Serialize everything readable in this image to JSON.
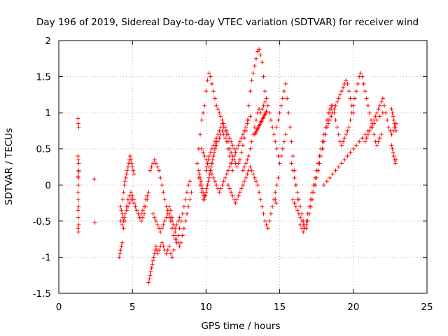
{
  "chart_data": {
    "type": "scatter",
    "title": "Day 196 of 2019, Sidereal Day-to-day VTEC variation (SDTVAR) for receiver wind",
    "xlabel": "GPS time / hours",
    "ylabel": "SDTVAR / TECUs",
    "xlim": [
      0,
      25
    ],
    "ylim": [
      -1.5,
      2
    ],
    "xticks": [
      0,
      5,
      10,
      15,
      20,
      25
    ],
    "yticks": [
      -1.5,
      -1,
      -0.5,
      0,
      0.5,
      1,
      1.5,
      2
    ],
    "xtick_labels": [
      "0",
      "5",
      "10",
      "15",
      "20",
      "25"
    ],
    "ytick_labels": [
      "-1.5",
      "-1",
      "-0.5",
      "0",
      "0.5",
      "1",
      "1.5",
      "2"
    ],
    "grid": true,
    "marker": "+",
    "color": "#ff0000",
    "series": [
      {
        "name": "SDTVAR",
        "x": [
          1.3,
          1.32,
          1.35,
          1.3,
          1.32,
          1.35,
          1.3,
          1.33,
          1.35,
          1.3,
          1.32,
          1.35,
          1.3,
          1.32,
          1.35,
          1.3,
          1.33,
          1.35,
          1.33,
          2.4,
          2.45,
          4.1,
          4.15,
          4.2,
          4.25,
          4.3,
          4.35,
          4.4,
          4.45,
          4.5,
          4.55,
          4.6,
          4.65,
          4.7,
          4.75,
          4.8,
          4.85,
          4.9,
          4.95,
          5.0,
          5.05,
          5.1,
          4.2,
          4.25,
          4.3,
          4.35,
          4.4,
          4.45,
          4.5,
          4.6,
          4.7,
          4.8,
          4.9,
          5.0,
          5.1,
          5.2,
          5.3,
          5.4,
          5.5,
          5.6,
          5.7,
          5.8,
          5.9,
          6.0,
          4.2,
          4.3,
          4.4,
          4.5,
          4.6,
          4.7,
          4.8,
          4.9,
          5.0,
          5.1,
          5.2,
          5.3,
          5.4,
          5.5,
          5.6,
          5.7,
          5.8,
          5.9,
          6.0,
          6.1,
          6.1,
          6.15,
          6.2,
          6.25,
          6.3,
          6.35,
          6.4,
          6.45,
          6.5,
          6.55,
          6.6,
          6.65,
          6.7,
          6.8,
          6.9,
          7.0,
          7.1,
          7.2,
          7.3,
          7.4,
          7.5,
          7.6,
          7.7,
          7.8,
          6.2,
          6.3,
          6.4,
          6.5,
          6.6,
          6.7,
          6.8,
          6.9,
          7.0,
          7.1,
          7.2,
          7.3,
          7.4,
          7.5,
          7.6,
          7.7,
          7.8,
          7.9,
          8.0,
          8.1,
          8.2,
          6.4,
          6.5,
          6.6,
          6.7,
          6.8,
          6.9,
          7.0,
          7.1,
          7.2,
          7.3,
          7.4,
          7.5,
          7.6,
          7.7,
          7.8,
          7.9,
          8.0,
          8.1,
          8.2,
          8.3,
          8.4,
          8.5,
          8.6,
          8.7,
          8.8,
          8.9,
          7.5,
          7.6,
          7.7,
          7.8,
          7.9,
          8.0,
          8.1,
          8.2,
          8.3,
          8.4,
          8.5,
          8.6,
          8.7,
          8.8,
          8.9,
          9.0,
          9.4,
          9.5,
          9.6,
          9.7,
          9.8,
          9.9,
          10.0,
          10.1,
          10.2,
          10.3,
          10.4,
          10.5,
          10.6,
          10.7,
          10.8,
          10.9,
          11.0,
          11.1,
          11.2,
          11.3,
          11.4,
          11.5,
          11.6,
          11.7,
          11.8,
          11.9,
          12.0,
          9.5,
          9.6,
          9.7,
          9.8,
          9.9,
          10.0,
          10.1,
          10.2,
          10.3,
          10.4,
          10.5,
          10.6,
          10.7,
          10.8,
          10.9,
          11.0,
          11.1,
          11.2,
          11.3,
          11.4,
          11.5,
          11.6,
          11.7,
          11.8,
          9.7,
          9.8,
          9.9,
          10.0,
          10.1,
          10.2,
          10.3,
          10.4,
          10.5,
          10.6,
          10.7,
          10.8,
          10.9,
          11.0,
          11.1,
          11.2,
          11.3,
          11.4,
          11.5,
          11.6,
          11.7,
          11.8,
          11.9,
          12.0,
          12.1,
          12.2,
          12.3,
          12.4,
          12.5,
          12.6,
          12.7,
          12.8,
          12.9,
          13.0,
          10.0,
          10.05,
          10.1,
          10.15,
          10.2,
          10.3,
          10.4,
          10.5,
          10.6,
          10.7,
          10.8,
          10.9,
          11.0,
          11.1,
          11.2,
          11.3,
          11.4,
          11.5,
          11.6,
          11.7,
          11.8,
          11.9,
          12.0,
          12.1,
          12.2,
          12.3,
          12.4,
          12.5,
          12.6,
          12.7,
          12.8,
          12.9,
          13.0,
          13.1,
          13.2,
          13.3,
          13.4,
          13.5,
          13.6,
          13.7,
          13.8,
          13.9,
          14.0,
          12.5,
          12.6,
          12.7,
          12.8,
          12.9,
          13.0,
          13.1,
          13.2,
          13.3,
          13.4,
          13.5,
          13.6,
          13.7,
          13.8,
          13.9,
          14.0,
          14.1,
          14.2,
          14.3,
          14.4,
          14.5,
          14.6,
          14.7,
          14.8,
          14.9,
          15.0,
          15.1,
          15.2,
          15.3,
          15.4,
          11.5,
          11.6,
          11.7,
          11.8,
          11.9,
          12.0,
          12.1,
          12.2,
          12.3,
          12.4,
          12.5,
          12.6,
          12.7,
          12.8,
          12.9,
          13.0,
          13.1,
          13.2,
          13.3,
          13.4,
          13.5,
          13.6,
          13.7,
          13.8,
          13.9,
          14.0,
          14.1,
          14.2,
          14.3,
          14.4,
          14.5,
          14.6,
          14.7,
          14.8,
          14.9,
          14.8,
          14.9,
          15.0,
          15.1,
          15.2,
          15.3,
          15.4,
          15.5,
          15.6,
          15.7,
          15.8,
          15.9,
          16.0,
          16.1,
          16.2,
          16.3,
          16.4,
          16.5,
          16.6,
          16.7,
          16.8,
          16.9,
          17.0,
          17.1,
          17.2,
          17.3,
          17.4,
          17.5,
          17.6,
          17.7,
          17.8,
          17.9,
          18.0,
          18.1,
          18.2,
          18.3,
          18.4,
          18.5,
          15.8,
          15.9,
          16.0,
          16.1,
          16.2,
          16.3,
          16.4,
          16.5,
          16.6,
          16.7,
          16.8,
          16.9,
          17.0,
          17.1,
          17.2,
          17.3,
          17.4,
          17.5,
          17.6,
          17.7,
          17.8,
          17.9,
          18.0,
          18.1,
          18.2,
          18.3,
          18.4,
          18.5,
          18.6,
          18.7,
          18.8,
          18.9,
          19.0,
          19.1,
          19.2,
          19.3,
          19.4,
          19.5,
          19.6,
          19.7,
          19.8,
          19.9,
          20.0,
          15.9,
          16.0,
          16.1,
          16.2,
          16.3,
          16.4,
          16.5,
          16.6,
          16.7,
          16.8,
          16.9,
          17.0,
          17.1,
          17.2,
          17.3,
          17.4,
          17.5,
          17.6,
          17.7,
          17.8,
          17.9,
          18.0,
          18.1,
          18.2,
          18.3,
          18.4,
          18.5,
          18.6,
          18.7,
          18.8,
          18.9,
          19.0,
          19.1,
          19.2,
          19.3,
          19.4,
          19.5,
          19.6,
          19.7,
          19.8,
          19.9,
          20.0,
          20.1,
          20.2,
          20.3,
          20.4,
          20.5,
          20.6,
          20.7,
          20.8,
          20.9,
          21.0,
          21.1,
          21.2,
          21.3,
          21.4,
          21.5,
          21.6,
          21.7,
          21.8,
          21.9,
          18.0,
          18.2,
          18.4,
          18.6,
          18.8,
          19.0,
          19.2,
          19.4,
          19.6,
          19.8,
          20.0,
          20.2,
          20.4,
          20.6,
          20.8,
          21.0,
          21.2,
          21.4,
          21.6,
          21.8,
          22.0,
          20.8,
          20.9,
          21.0,
          21.1,
          21.2,
          21.3,
          21.4,
          21.5,
          21.6,
          21.7,
          21.8,
          21.9,
          22.0,
          22.1,
          22.2,
          22.3,
          22.4,
          22.5,
          22.6,
          22.7,
          22.8,
          22.9,
          22.6,
          22.65,
          22.7,
          22.75,
          22.8,
          22.85,
          22.9,
          22.6,
          22.65,
          22.7,
          22.75,
          22.8,
          22.85,
          22.9,
          14.7,
          14.75,
          9.5,
          9.55,
          9.6,
          9.65,
          9.7,
          9.75,
          9.8,
          9.85,
          9.9,
          9.95,
          10.0,
          10.05,
          10.1,
          10.15,
          10.2,
          10.25,
          10.3,
          10.35,
          10.4,
          10.45,
          10.5,
          10.55,
          10.6,
          10.65,
          10.7,
          13.3,
          13.35,
          13.4,
          13.45,
          13.5,
          13.55,
          13.6,
          13.65,
          13.7,
          13.75,
          13.8,
          13.85,
          13.9,
          13.95,
          14.0,
          14.05,
          14.1
        ],
        "y": [
          0.92,
          0.85,
          0.8,
          0.4,
          0.35,
          0.3,
          0.12,
          0.1,
          0.18,
          -0.1,
          -0.2,
          -0.3,
          -0.35,
          -0.45,
          -0.55,
          -0.6,
          -0.65,
          0.2,
          0.0,
          0.08,
          -0.52,
          -1.0,
          -0.95,
          -0.9,
          -0.85,
          -0.8,
          -0.2,
          -0.1,
          0.0,
          0.05,
          0.1,
          0.15,
          0.2,
          0.25,
          0.3,
          0.35,
          0.4,
          0.35,
          0.3,
          0.25,
          0.2,
          0.15,
          -0.3,
          -0.35,
          -0.4,
          -0.45,
          -0.5,
          -0.45,
          -0.4,
          -0.35,
          -0.3,
          -0.25,
          -0.2,
          -0.2,
          -0.25,
          -0.3,
          -0.35,
          -0.4,
          -0.45,
          -0.4,
          -0.35,
          -0.3,
          -0.2,
          -0.15,
          -0.5,
          -0.55,
          -0.6,
          -0.5,
          -0.3,
          -0.2,
          -0.15,
          -0.1,
          -0.15,
          -0.2,
          -0.3,
          -0.35,
          -0.4,
          -0.45,
          -0.5,
          -0.45,
          -0.4,
          -0.3,
          -0.2,
          -0.1,
          -1.35,
          -1.3,
          -1.25,
          -1.2,
          -1.15,
          -1.1,
          -1.05,
          -1.0,
          -0.95,
          -0.9,
          -0.85,
          -0.9,
          -0.95,
          -0.9,
          -0.85,
          -0.8,
          -0.85,
          -0.9,
          -0.95,
          -0.9,
          -0.85,
          -0.95,
          -1.0,
          -0.9,
          0.2,
          0.25,
          0.3,
          0.35,
          0.3,
          0.25,
          0.2,
          0.1,
          0.0,
          -0.1,
          -0.2,
          -0.3,
          -0.35,
          -0.4,
          -0.45,
          -0.5,
          -0.55,
          -0.6,
          -0.55,
          -0.5,
          -0.45,
          -0.4,
          -0.45,
          -0.5,
          -0.55,
          -0.6,
          -0.65,
          -0.6,
          -0.55,
          -0.5,
          -0.45,
          -0.4,
          -0.45,
          -0.5,
          -0.6,
          -0.7,
          -0.75,
          -0.8,
          -0.7,
          -0.6,
          -0.5,
          -0.4,
          -0.3,
          -0.2,
          -0.1,
          0.0,
          0.05,
          -0.3,
          -0.35,
          -0.45,
          -0.55,
          -0.65,
          -0.75,
          -0.8,
          -0.85,
          -0.8,
          -0.7,
          -0.6,
          -0.5,
          -0.4,
          -0.3,
          -0.2,
          -0.1,
          0.3,
          0.5,
          0.7,
          0.9,
          1.0,
          1.1,
          1.3,
          1.45,
          1.55,
          1.5,
          1.4,
          1.3,
          1.2,
          1.1,
          1.05,
          1.0,
          0.95,
          0.9,
          0.85,
          0.8,
          0.75,
          0.7,
          0.65,
          0.6,
          0.55,
          0.5,
          0.45,
          0.1,
          0.0,
          -0.1,
          -0.2,
          -0.15,
          -0.1,
          0.0,
          0.1,
          0.2,
          0.3,
          0.4,
          0.5,
          0.55,
          0.6,
          0.65,
          0.7,
          0.75,
          0.7,
          0.65,
          0.6,
          0.5,
          0.4,
          0.3,
          0.2,
          0.5,
          0.45,
          0.4,
          0.35,
          0.3,
          0.25,
          0.2,
          0.15,
          0.1,
          0.05,
          0.0,
          -0.05,
          -0.1,
          -0.05,
          0.0,
          0.05,
          0.1,
          0.15,
          0.2,
          0.25,
          0.3,
          0.35,
          0.4,
          0.45,
          0.5,
          0.55,
          0.6,
          0.65,
          0.7,
          0.75,
          0.8,
          0.85,
          0.9,
          0.95,
          0.2,
          0.25,
          0.3,
          0.35,
          0.4,
          0.45,
          0.5,
          0.55,
          0.6,
          0.65,
          0.7,
          0.75,
          0.8,
          0.85,
          0.8,
          0.75,
          0.7,
          0.6,
          0.5,
          0.45,
          0.4,
          0.35,
          0.3,
          0.25,
          0.3,
          0.35,
          0.45,
          0.55,
          0.65,
          0.75,
          0.9,
          1.1,
          1.3,
          1.45,
          1.55,
          1.65,
          1.75,
          1.85,
          1.88,
          1.8,
          1.7,
          1.5,
          1.3,
          0.2,
          0.25,
          0.3,
          0.35,
          0.4,
          0.5,
          0.6,
          0.7,
          0.8,
          0.9,
          1.0,
          1.05,
          1.0,
          1.05,
          1.1,
          1.15,
          1.2,
          1.1,
          1.0,
          0.9,
          0.8,
          0.7,
          0.6,
          0.5,
          0.4,
          0.3,
          0.4,
          0.5,
          0.6,
          0.7,
          0.0,
          -0.05,
          -0.1,
          -0.15,
          -0.2,
          -0.25,
          -0.2,
          -0.15,
          -0.1,
          -0.05,
          0.0,
          0.05,
          0.1,
          0.15,
          0.2,
          0.25,
          0.2,
          0.15,
          0.1,
          0.05,
          0.0,
          -0.1,
          -0.2,
          -0.3,
          -0.4,
          -0.5,
          -0.55,
          -0.6,
          -0.5,
          -0.4,
          -0.3,
          -0.2,
          -0.1,
          0.0,
          0.1,
          0.8,
          0.9,
          1.0,
          1.1,
          1.2,
          1.3,
          1.4,
          1.2,
          1.0,
          0.8,
          0.6,
          0.4,
          0.2,
          0.0,
          -0.2,
          -0.4,
          -0.55,
          -0.6,
          -0.65,
          -0.6,
          -0.5,
          -0.4,
          -0.3,
          -0.2,
          -0.1,
          0.0,
          0.1,
          0.2,
          0.3,
          0.4,
          0.5,
          0.6,
          0.7,
          0.8,
          0.9,
          1.0,
          1.05,
          1.1,
          0.3,
          0.2,
          0.1,
          0.0,
          -0.1,
          -0.2,
          -0.3,
          -0.4,
          -0.5,
          -0.55,
          -0.6,
          -0.5,
          -0.4,
          -0.3,
          -0.2,
          -0.1,
          0.0,
          0.1,
          0.2,
          0.3,
          0.4,
          0.5,
          0.6,
          0.7,
          0.8,
          0.85,
          0.9,
          0.95,
          1.0,
          1.05,
          1.1,
          1.15,
          1.2,
          1.25,
          1.3,
          1.35,
          1.4,
          1.45,
          1.4,
          1.3,
          1.2,
          1.1,
          1.0,
          -0.2,
          -0.25,
          -0.3,
          -0.35,
          -0.4,
          -0.45,
          -0.5,
          -0.55,
          -0.6,
          -0.55,
          -0.5,
          -0.4,
          -0.3,
          -0.2,
          -0.1,
          0.0,
          0.1,
          0.2,
          0.3,
          0.4,
          0.5,
          0.6,
          0.7,
          0.8,
          0.9,
          1.0,
          1.05,
          1.1,
          1.0,
          0.9,
          0.8,
          0.7,
          0.6,
          0.55,
          0.6,
          0.65,
          0.7,
          0.75,
          0.8,
          0.9,
          1.0,
          1.1,
          1.2,
          1.3,
          1.4,
          1.5,
          1.55,
          1.5,
          1.4,
          1.3,
          1.2,
          1.1,
          1.0,
          0.9,
          0.8,
          0.7,
          0.6,
          0.55,
          0.6,
          0.65,
          0.7,
          0.0,
          0.05,
          0.1,
          0.15,
          0.2,
          0.25,
          0.3,
          0.35,
          0.4,
          0.45,
          0.5,
          0.55,
          0.6,
          0.65,
          0.7,
          0.75,
          0.8,
          0.85,
          0.9,
          0.95,
          1.0,
          0.6,
          0.65,
          0.7,
          0.75,
          0.8,
          0.85,
          0.9,
          0.95,
          1.0,
          1.05,
          1.1,
          1.15,
          1.2,
          1.1,
          1.0,
          0.9,
          0.8,
          0.75,
          0.7,
          0.75,
          0.8,
          0.85,
          1.05,
          1.0,
          0.95,
          0.9,
          0.85,
          0.8,
          0.75,
          0.55,
          0.5,
          0.45,
          0.4,
          0.35,
          0.3,
          0.35,
          -0.2,
          -0.25,
          0.2,
          0.15,
          0.1,
          0.05,
          0.0,
          -0.05,
          -0.1,
          -0.15,
          -0.2,
          -0.15,
          -0.1,
          -0.05,
          0.0,
          0.05,
          0.1,
          0.15,
          0.2,
          0.25,
          0.3,
          0.35,
          0.4,
          0.45,
          0.5,
          0.55,
          0.6,
          0.7,
          0.72,
          0.74,
          0.76,
          0.78,
          0.8,
          0.82,
          0.84,
          0.86,
          0.88,
          0.9,
          0.92,
          0.94,
          0.96,
          0.98,
          1.0,
          1.02
        ]
      }
    ]
  }
}
